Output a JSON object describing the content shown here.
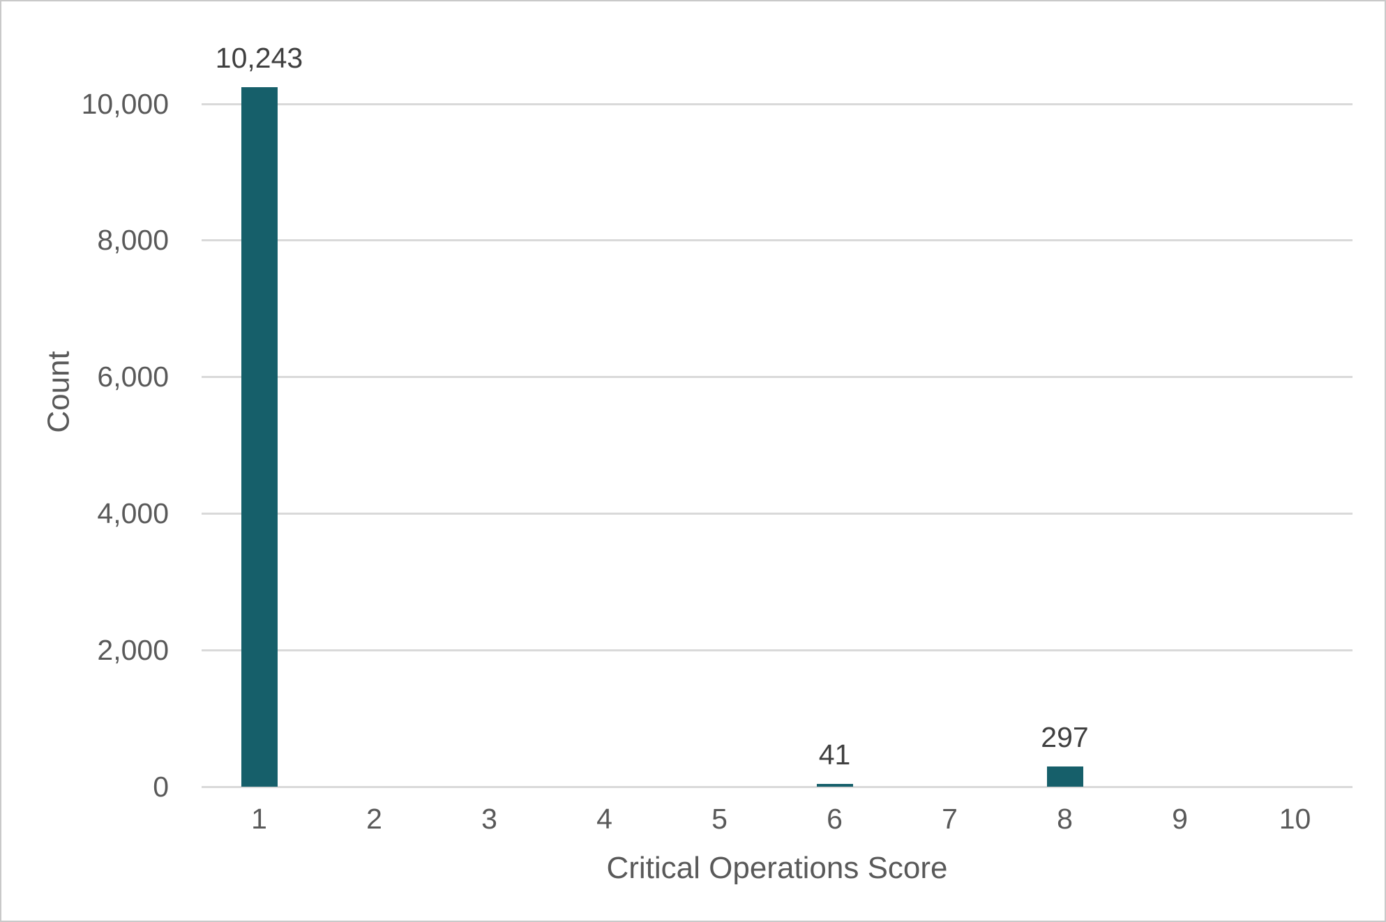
{
  "figure": {
    "background": "#ffffff",
    "border_color": "#c9c9c9"
  },
  "chart_data": {
    "type": "bar",
    "title": "",
    "xlabel": "Critical Operations Score",
    "ylabel": "Count",
    "categories": [
      "1",
      "2",
      "3",
      "4",
      "5",
      "6",
      "7",
      "8",
      "9",
      "10"
    ],
    "values": [
      10243,
      0,
      0,
      0,
      0,
      41,
      0,
      297,
      0,
      0
    ],
    "bar_labels": [
      "10,243",
      "",
      "",
      "",
      "",
      "41",
      "",
      "297",
      "",
      ""
    ],
    "ylim": [
      0,
      10000
    ],
    "yticks": [
      {
        "value": 0,
        "label": "0"
      },
      {
        "value": 2000,
        "label": "2,000"
      },
      {
        "value": 4000,
        "label": "4,000"
      },
      {
        "value": 6000,
        "label": "6,000"
      },
      {
        "value": 8000,
        "label": "8,000"
      },
      {
        "value": 10000,
        "label": "10,000"
      }
    ],
    "grid": true,
    "legend_position": "none",
    "colors": {
      "bar": "#165f6a",
      "gridline": "#d9d9d9",
      "tick_label": "#595959",
      "value_label": "#404040",
      "axis_title": "#595959"
    }
  }
}
